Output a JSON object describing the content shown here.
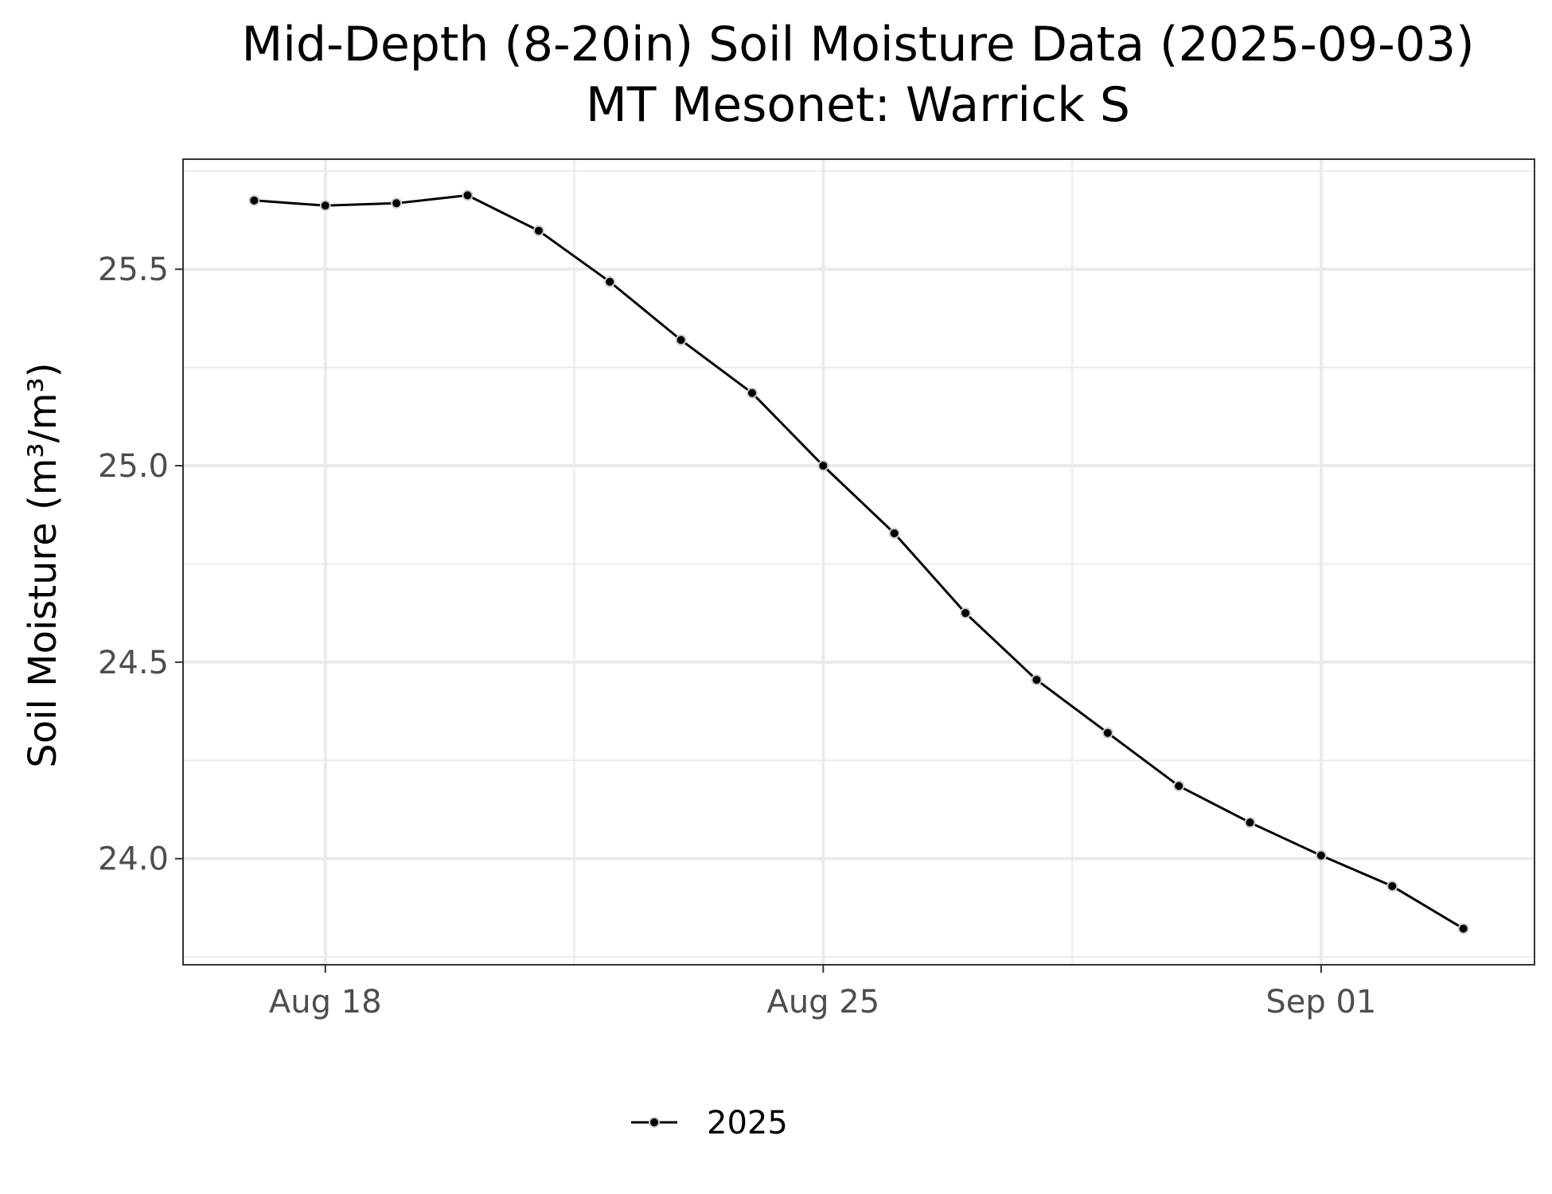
{
  "chart_data": {
    "type": "line",
    "title": "Mid-Depth (8-20in) Soil Moisture Data (2025-09-03)",
    "subtitle": "MT Mesonet: Warrick S",
    "xlabel": "",
    "ylabel": "Soil Moisture (m³/m³)",
    "xlim": [
      "2025-08-16",
      "2025-09-04"
    ],
    "ylim": [
      23.73,
      25.78
    ],
    "x_ticks": [
      {
        "date": "2025-08-18",
        "label": "Aug 18"
      },
      {
        "date": "2025-08-25",
        "label": "Aug 25"
      },
      {
        "date": "2025-09-01",
        "label": "Sep 01"
      }
    ],
    "y_ticks": [
      {
        "value": 24.0,
        "label": "24.0"
      },
      {
        "value": 24.5,
        "label": "24.5"
      },
      {
        "value": 25.0,
        "label": "25.0"
      },
      {
        "value": 25.5,
        "label": "25.5"
      }
    ],
    "grid": true,
    "legend_position": "bottom",
    "series": [
      {
        "name": "2025",
        "color": "#000000",
        "points": [
          {
            "x": "2025-08-17",
            "y": 25.675
          },
          {
            "x": "2025-08-18",
            "y": 25.662
          },
          {
            "x": "2025-08-19",
            "y": 25.668
          },
          {
            "x": "2025-08-20",
            "y": 25.688
          },
          {
            "x": "2025-08-21",
            "y": 25.598
          },
          {
            "x": "2025-08-22",
            "y": 25.468
          },
          {
            "x": "2025-08-23",
            "y": 25.32
          },
          {
            "x": "2025-08-24",
            "y": 25.185
          },
          {
            "x": "2025-08-25",
            "y": 25.0
          },
          {
            "x": "2025-08-26",
            "y": 24.828
          },
          {
            "x": "2025-08-27",
            "y": 24.625
          },
          {
            "x": "2025-08-28",
            "y": 24.455
          },
          {
            "x": "2025-08-29",
            "y": 24.32
          },
          {
            "x": "2025-08-30",
            "y": 24.185
          },
          {
            "x": "2025-08-31",
            "y": 24.092
          },
          {
            "x": "2025-09-01",
            "y": 24.008
          },
          {
            "x": "2025-09-02",
            "y": 23.93
          },
          {
            "x": "2025-09-03",
            "y": 23.822
          }
        ]
      }
    ]
  }
}
